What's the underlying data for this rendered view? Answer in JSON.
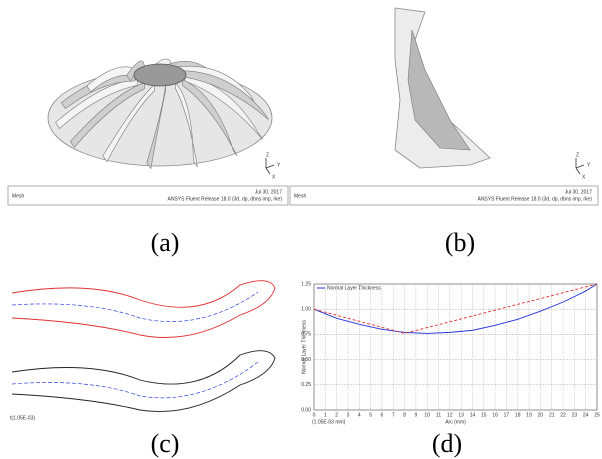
{
  "panels": [
    {
      "label": "(a)",
      "axes": [
        "Z",
        "Y",
        "X"
      ],
      "footer": {
        "left": "Mesh",
        "date": "Jul 30, 2017",
        "release": "ANSYS Fluent Release 18.0 (3d, dp, dbns imp, rke)"
      }
    },
    {
      "label": "(b)",
      "axes": [
        "Z",
        "Y",
        "X"
      ],
      "footer": {
        "left": "Mesh",
        "date": "Jul 30, 2017",
        "release": "ANSYS Fluent Release 18.0 (3d, dp, dbns imp, rke)"
      }
    },
    {
      "label": "(c)",
      "note": "t(1.05E-03)"
    },
    {
      "label": "(d)"
    }
  ],
  "chart_data": {
    "type": "line",
    "ylabel": "Normal Layer Thickness",
    "xlabel": "Arc (mm)",
    "corner_note": "(1.05E-03 mm)",
    "legend": "upper left",
    "grid": true,
    "xlim": [
      0,
      25
    ],
    "ylim": [
      0,
      1.25
    ],
    "xticks": [
      0,
      1,
      2,
      3,
      4,
      5,
      6,
      7,
      8,
      9,
      10,
      11,
      12,
      13,
      14,
      15,
      16,
      17,
      18,
      19,
      20,
      21,
      22,
      23,
      24,
      25
    ],
    "yticks": [
      {
        "value": 0,
        "label": "0.00"
      },
      {
        "value": 0.25,
        "label": "0.25"
      },
      {
        "value": 0.5,
        "label": "0.50"
      },
      {
        "value": 0.75,
        "label": "0.75"
      },
      {
        "value": 1,
        "label": "1.00"
      },
      {
        "value": 1.25,
        "label": "1.25"
      }
    ],
    "series": [
      {
        "name": "Normal Layer Thickness",
        "color": "#2233dd",
        "dash": false,
        "x": [
          0,
          2,
          4,
          6,
          8,
          10,
          12,
          14,
          16,
          18,
          20,
          22,
          24,
          25
        ],
        "values": [
          1.0,
          0.91,
          0.85,
          0.8,
          0.77,
          0.76,
          0.77,
          0.79,
          0.84,
          0.9,
          0.98,
          1.07,
          1.18,
          1.25
        ]
      },
      {
        "color": "#e03030",
        "dash": true,
        "x": [
          0,
          8,
          25
        ],
        "values": [
          1.0,
          0.76,
          1.25
        ]
      }
    ]
  }
}
